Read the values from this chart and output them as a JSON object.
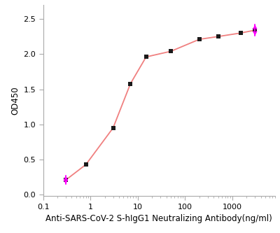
{
  "x_data": [
    0.3,
    0.8,
    3.0,
    7.0,
    15.0,
    50.0,
    200.0,
    500.0,
    1500.0,
    3000.0
  ],
  "y_data": [
    0.21,
    0.43,
    0.95,
    1.58,
    1.96,
    2.04,
    2.21,
    2.25,
    2.3,
    2.34
  ],
  "y_err_first_up": 0.06,
  "y_err_first_down": 0.06,
  "y_err_last_up": 0.08,
  "y_err_last_down": 0.08,
  "line_color": "#f08080",
  "marker_color": "#1a1a1a",
  "error_color": "#ff00ff",
  "xlabel": "Anti-SARS-CoV-2 S-hIgG1 Neutralizing Antibody(ng/ml)",
  "ylabel": "OD450",
  "xlim": [
    0.1,
    8000
  ],
  "ylim": [
    -0.02,
    2.7
  ],
  "yticks": [
    0.0,
    0.5,
    1.0,
    1.5,
    2.0,
    2.5
  ],
  "xtick_labels": [
    "0.1",
    "1",
    "10",
    "100",
    "1000"
  ],
  "xtick_positions": [
    0.1,
    1,
    10,
    100,
    1000
  ],
  "background_color": "#ffffff",
  "label_fontsize": 8.5,
  "tick_fontsize": 8
}
